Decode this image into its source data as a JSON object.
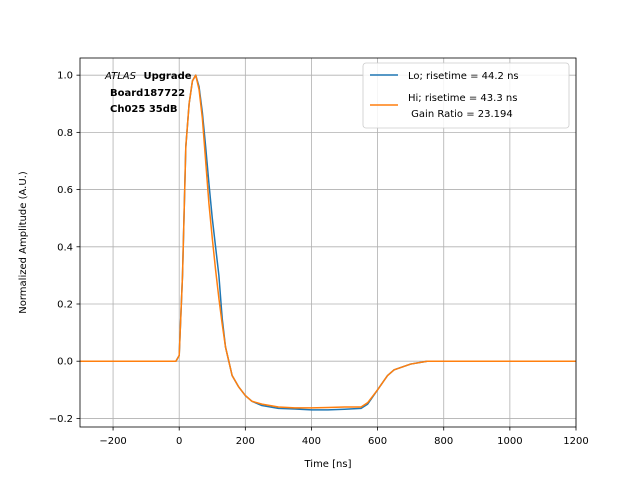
{
  "chart_data": {
    "type": "line",
    "xlabel": "Time [ns]",
    "ylabel": "Normalized Amplitude (A.U.)",
    "xlim": [
      -300,
      1200
    ],
    "ylim": [
      -0.23,
      1.06
    ],
    "xticks": [
      -200,
      0,
      200,
      400,
      600,
      800,
      1000,
      1200
    ],
    "yticks": [
      -0.2,
      0.0,
      0.2,
      0.4,
      0.6,
      0.8,
      1.0
    ],
    "xtick_labels": [
      "−200",
      "0",
      "200",
      "400",
      "600",
      "800",
      "1000",
      "1200"
    ],
    "ytick_labels": [
      "−0.2",
      "0.0",
      "0.2",
      "0.4",
      "0.6",
      "0.8",
      "1.0"
    ],
    "grid": true,
    "legend_position": "top-right",
    "annotation": {
      "italic": "ATLAS",
      "bold": "Upgrade",
      "line2": "Board187722",
      "line3": "Ch025 35dB"
    },
    "series": [
      {
        "name": "Lo; risetime = 44.2 ns",
        "color": "#1f77b4",
        "points": [
          [
            -300,
            0.0
          ],
          [
            -200,
            0.0
          ],
          [
            -100,
            0.0
          ],
          [
            -10,
            0.0
          ],
          [
            0,
            0.02
          ],
          [
            10,
            0.3
          ],
          [
            20,
            0.75
          ],
          [
            30,
            0.9
          ],
          [
            40,
            0.98
          ],
          [
            50,
            1.0
          ],
          [
            60,
            0.96
          ],
          [
            70,
            0.87
          ],
          [
            80,
            0.75
          ],
          [
            90,
            0.62
          ],
          [
            100,
            0.5
          ],
          [
            110,
            0.4
          ],
          [
            120,
            0.3
          ],
          [
            130,
            0.15
          ],
          [
            140,
            0.05
          ],
          [
            150,
            0.0
          ],
          [
            160,
            -0.05
          ],
          [
            180,
            -0.09
          ],
          [
            200,
            -0.12
          ],
          [
            220,
            -0.14
          ],
          [
            250,
            -0.155
          ],
          [
            300,
            -0.165
          ],
          [
            350,
            -0.167
          ],
          [
            400,
            -0.17
          ],
          [
            450,
            -0.17
          ],
          [
            500,
            -0.168
          ],
          [
            550,
            -0.165
          ],
          [
            570,
            -0.15
          ],
          [
            600,
            -0.1
          ],
          [
            630,
            -0.05
          ],
          [
            650,
            -0.03
          ],
          [
            700,
            -0.01
          ],
          [
            750,
            0.0
          ],
          [
            800,
            0.0
          ],
          [
            900,
            0.0
          ],
          [
            1000,
            0.0
          ],
          [
            1200,
            0.0
          ]
        ]
      },
      {
        "name": "Hi; risetime = 43.3 ns",
        "name2": " Gain Ratio = 23.194",
        "color": "#ff7f0e",
        "points": [
          [
            -300,
            0.0
          ],
          [
            -200,
            0.0
          ],
          [
            -100,
            0.0
          ],
          [
            -10,
            0.0
          ],
          [
            0,
            0.02
          ],
          [
            10,
            0.3
          ],
          [
            20,
            0.75
          ],
          [
            30,
            0.9
          ],
          [
            40,
            0.98
          ],
          [
            50,
            1.0
          ],
          [
            60,
            0.95
          ],
          [
            70,
            0.85
          ],
          [
            80,
            0.7
          ],
          [
            90,
            0.55
          ],
          [
            100,
            0.43
          ],
          [
            110,
            0.32
          ],
          [
            120,
            0.22
          ],
          [
            130,
            0.13
          ],
          [
            140,
            0.05
          ],
          [
            150,
            0.0
          ],
          [
            160,
            -0.05
          ],
          [
            180,
            -0.09
          ],
          [
            200,
            -0.12
          ],
          [
            220,
            -0.14
          ],
          [
            250,
            -0.15
          ],
          [
            300,
            -0.16
          ],
          [
            350,
            -0.163
          ],
          [
            400,
            -0.163
          ],
          [
            450,
            -0.162
          ],
          [
            500,
            -0.16
          ],
          [
            550,
            -0.16
          ],
          [
            570,
            -0.145
          ],
          [
            600,
            -0.1
          ],
          [
            630,
            -0.05
          ],
          [
            650,
            -0.03
          ],
          [
            700,
            -0.01
          ],
          [
            750,
            0.0
          ],
          [
            800,
            0.0
          ],
          [
            900,
            0.0
          ],
          [
            1000,
            0.0
          ],
          [
            1200,
            0.0
          ]
        ]
      }
    ]
  }
}
